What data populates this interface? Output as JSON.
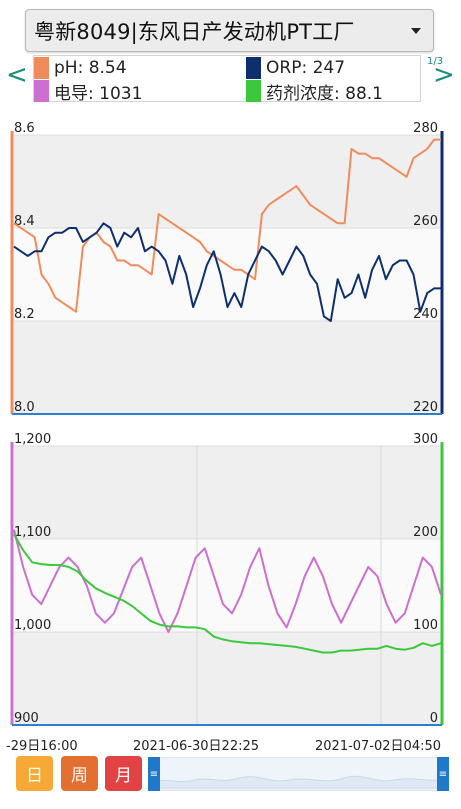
{
  "header": {
    "station": "粤新8049|东风日产发动机PT工厂"
  },
  "nav": {
    "prev": "<",
    "next": ">",
    "page_indicator": "1/3"
  },
  "legend": [
    {
      "label": "pH: 8.54",
      "color": "#f28b5c"
    },
    {
      "label": "ORP: 247",
      "color": "#0d2f6e"
    },
    {
      "label": "电导: 1031",
      "color": "#cc6fd0"
    },
    {
      "label": "药剂浓度: 88.1",
      "color": "#3cc83c"
    }
  ],
  "x_axis": {
    "labels": [
      "-29日16:00",
      "2021-06-30日22:25",
      "2021-07-02日04:50"
    ]
  },
  "chart_data": [
    {
      "type": "line",
      "left_axis": {
        "ticks": [
          "8.6",
          "8.4",
          "8.2",
          "8.0"
        ],
        "range": [
          8.0,
          8.6
        ],
        "color": "#f28b5c"
      },
      "right_axis": {
        "ticks": [
          "280",
          "260",
          "240",
          "220"
        ],
        "range": [
          220,
          280
        ],
        "color": "#0d2f6e"
      },
      "series": [
        {
          "name": "pH",
          "axis": "left",
          "color": "#f28b5c",
          "values": [
            8.41,
            8.4,
            8.39,
            8.38,
            8.3,
            8.28,
            8.25,
            8.24,
            8.23,
            8.22,
            8.36,
            8.38,
            8.39,
            8.37,
            8.36,
            8.33,
            8.33,
            8.32,
            8.32,
            8.31,
            8.3,
            8.43,
            8.42,
            8.41,
            8.4,
            8.39,
            8.38,
            8.37,
            8.35,
            8.34,
            8.33,
            8.32,
            8.31,
            8.31,
            8.3,
            8.29,
            8.43,
            8.45,
            8.46,
            8.47,
            8.48,
            8.49,
            8.47,
            8.45,
            8.44,
            8.43,
            8.42,
            8.41,
            8.41,
            8.57,
            8.56,
            8.56,
            8.55,
            8.55,
            8.54,
            8.53,
            8.52,
            8.51,
            8.55,
            8.56,
            8.57,
            8.59,
            8.59
          ]
        },
        {
          "name": "ORP",
          "axis": "right",
          "color": "#0d2f6e",
          "values": [
            256,
            255,
            254,
            255,
            255,
            258,
            259,
            259,
            260,
            260,
            257,
            258,
            259,
            261,
            260,
            256,
            259,
            258,
            260,
            255,
            256,
            255,
            253,
            248,
            254,
            250,
            243,
            247,
            252,
            255,
            250,
            243,
            246,
            243,
            250,
            253,
            256,
            255,
            253,
            250,
            253,
            256,
            254,
            250,
            248,
            241,
            240,
            249,
            245,
            246,
            250,
            245,
            251,
            254,
            249,
            252,
            253,
            253,
            250,
            242,
            246,
            247,
            247
          ]
        }
      ]
    },
    {
      "type": "line",
      "left_axis": {
        "ticks": [
          "1,200",
          "1,100",
          "1,000",
          "900"
        ],
        "range": [
          900,
          1200
        ],
        "color": "#cc6fd0"
      },
      "right_axis": {
        "ticks": [
          "300",
          "200",
          "100",
          "0"
        ],
        "range": [
          0,
          300
        ],
        "color": "#3cc83c"
      },
      "series": [
        {
          "name": "电导",
          "axis": "left",
          "color": "#cc6fd0",
          "values": [
            1110,
            1070,
            1040,
            1030,
            1050,
            1070,
            1080,
            1070,
            1050,
            1020,
            1010,
            1020,
            1045,
            1070,
            1080,
            1050,
            1020,
            1000,
            1020,
            1050,
            1080,
            1090,
            1060,
            1030,
            1020,
            1040,
            1070,
            1090,
            1050,
            1020,
            1005,
            1030,
            1060,
            1080,
            1060,
            1030,
            1010,
            1030,
            1050,
            1070,
            1060,
            1030,
            1010,
            1020,
            1050,
            1080,
            1070,
            1040
          ]
        },
        {
          "name": "药剂浓度",
          "axis": "right",
          "color": "#3cc83c",
          "values": [
            205,
            188,
            175,
            173,
            172,
            172,
            170,
            165,
            155,
            147,
            142,
            138,
            134,
            128,
            120,
            112,
            108,
            106,
            106,
            105,
            105,
            103,
            95,
            92,
            90,
            89,
            88,
            88,
            87,
            86,
            85,
            84,
            82,
            80,
            78,
            78,
            80,
            80,
            81,
            82,
            82,
            85,
            82,
            81,
            83,
            88,
            85,
            88
          ]
        }
      ]
    }
  ],
  "controls": {
    "day": "日",
    "week": "周",
    "month": "月",
    "handle": "≡"
  }
}
